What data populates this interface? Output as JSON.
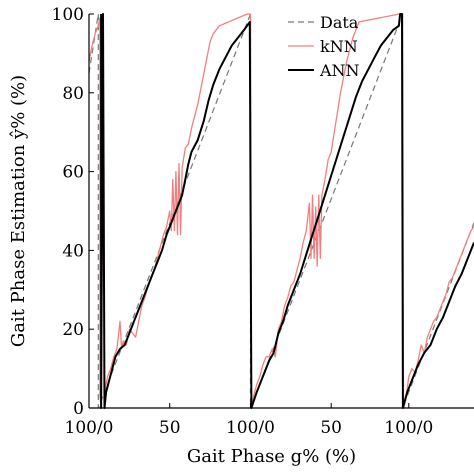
{
  "chart_data": {
    "type": "line",
    "xlabel": "Gait Phase g% (%)",
    "ylabel": "Gait Phase Estimation ŷ% (%)",
    "x_tick_labels": [
      "100/0",
      "50",
      "100/0",
      "50",
      "100/0"
    ],
    "y_tick_labels": [
      "0",
      "20",
      "40",
      "60",
      "80",
      "100"
    ],
    "ylim": [
      0,
      100
    ],
    "legend": {
      "position": "top-right"
    },
    "colors": {
      "Data": "#777777",
      "kNN": "#f08080",
      "ANN": "#000000"
    },
    "series": [
      {
        "name": "Data",
        "style": "dashed",
        "points": [
          [
            0,
            85
          ],
          [
            3,
            100
          ],
          [
            3,
            0
          ],
          [
            52,
            100
          ],
          [
            52,
            0
          ],
          [
            101,
            100
          ],
          [
            101,
            0
          ],
          [
            124,
            47
          ]
        ]
      },
      {
        "name": "kNN",
        "style": "solid",
        "points": [
          [
            0,
            88
          ],
          [
            1,
            92
          ],
          [
            2,
            95
          ],
          [
            3,
            97
          ],
          [
            3.5,
            99
          ],
          [
            3.5,
            3
          ],
          [
            4,
            0
          ],
          [
            4.5,
            100
          ],
          [
            5,
            4
          ],
          [
            6,
            8
          ],
          [
            7,
            10
          ],
          [
            8,
            13
          ],
          [
            9,
            15
          ],
          [
            10,
            22
          ],
          [
            10.5,
            15
          ],
          [
            11,
            17
          ],
          [
            12,
            16
          ],
          [
            13,
            20
          ],
          [
            14,
            19
          ],
          [
            15,
            18
          ],
          [
            16,
            22
          ],
          [
            17,
            26
          ],
          [
            18,
            28
          ],
          [
            19,
            31
          ],
          [
            20,
            33
          ],
          [
            21,
            35
          ],
          [
            22,
            38
          ],
          [
            23,
            41
          ],
          [
            24,
            44
          ],
          [
            25,
            46
          ],
          [
            26,
            50
          ],
          [
            26.5,
            45
          ],
          [
            27,
            58
          ],
          [
            27.5,
            45
          ],
          [
            28,
            60
          ],
          [
            28.5,
            44
          ],
          [
            29,
            62
          ],
          [
            29.5,
            44
          ],
          [
            30,
            61
          ],
          [
            31,
            66
          ],
          [
            32,
            67
          ],
          [
            33,
            71
          ],
          [
            34,
            74
          ],
          [
            35,
            77
          ],
          [
            36,
            81
          ],
          [
            37,
            85
          ],
          [
            38,
            89
          ],
          [
            39,
            93
          ],
          [
            40,
            95
          ],
          [
            41,
            96
          ],
          [
            42,
            97
          ],
          [
            51,
            100
          ],
          [
            52,
            100
          ],
          [
            52.3,
            0
          ],
          [
            53,
            3
          ],
          [
            54,
            6
          ],
          [
            55,
            8
          ],
          [
            56,
            11
          ],
          [
            57,
            13
          ],
          [
            58,
            13
          ],
          [
            59,
            15
          ],
          [
            60,
            13
          ],
          [
            61,
            20
          ],
          [
            62,
            22
          ],
          [
            63,
            26
          ],
          [
            64,
            28
          ],
          [
            65,
            31
          ],
          [
            66,
            32
          ],
          [
            67,
            35
          ],
          [
            68,
            38
          ],
          [
            69,
            42
          ],
          [
            70,
            45
          ],
          [
            71,
            52
          ],
          [
            71.5,
            38
          ],
          [
            72,
            54
          ],
          [
            72.5,
            38
          ],
          [
            73,
            51
          ],
          [
            73.5,
            36
          ],
          [
            74,
            54
          ],
          [
            74.5,
            38
          ],
          [
            75,
            54
          ],
          [
            76,
            58
          ],
          [
            77,
            63
          ],
          [
            78,
            65
          ],
          [
            79,
            70
          ],
          [
            80,
            75
          ],
          [
            81,
            80
          ],
          [
            82,
            84
          ],
          [
            83,
            88
          ],
          [
            84,
            91
          ],
          [
            85,
            94
          ],
          [
            86,
            96
          ],
          [
            87,
            98
          ],
          [
            100,
            100
          ],
          [
            101,
            100
          ],
          [
            101.3,
            0
          ],
          [
            102,
            2
          ],
          [
            103,
            8
          ],
          [
            104,
            10
          ],
          [
            105,
            9
          ],
          [
            106,
            12
          ],
          [
            107,
            16
          ],
          [
            108,
            14
          ],
          [
            109,
            18
          ],
          [
            110,
            20
          ],
          [
            111,
            22
          ],
          [
            112,
            23
          ],
          [
            113,
            25
          ],
          [
            114,
            27
          ],
          [
            115,
            29
          ],
          [
            116,
            32
          ],
          [
            117,
            33
          ],
          [
            118,
            35
          ],
          [
            119,
            37
          ],
          [
            120,
            39
          ],
          [
            121,
            41
          ],
          [
            122,
            43
          ],
          [
            123,
            45
          ],
          [
            124,
            46
          ]
        ]
      },
      {
        "name": "ANN",
        "style": "solid",
        "points": [
          [
            3.9,
            100
          ],
          [
            3.9,
            0
          ],
          [
            4.5,
            100
          ],
          [
            5,
            0
          ],
          [
            5.5,
            4
          ],
          [
            6.5,
            7
          ],
          [
            7.5,
            10
          ],
          [
            8.5,
            13
          ],
          [
            10,
            15
          ],
          [
            11.5,
            16
          ],
          [
            13,
            19
          ],
          [
            14.5,
            22
          ],
          [
            16,
            25
          ],
          [
            17.5,
            28
          ],
          [
            19,
            31
          ],
          [
            20.5,
            34
          ],
          [
            22,
            37
          ],
          [
            23.5,
            40
          ],
          [
            25,
            44
          ],
          [
            26.5,
            47
          ],
          [
            28,
            50
          ],
          [
            30,
            54
          ],
          [
            31,
            58
          ],
          [
            32,
            62
          ],
          [
            33,
            65
          ],
          [
            35,
            68
          ],
          [
            37,
            73
          ],
          [
            38.5,
            78
          ],
          [
            40,
            82
          ],
          [
            42,
            86
          ],
          [
            44,
            89
          ],
          [
            46,
            92
          ],
          [
            48,
            94
          ],
          [
            50,
            96
          ],
          [
            51.8,
            98
          ],
          [
            52.3,
            0
          ],
          [
            54,
            4
          ],
          [
            56,
            8
          ],
          [
            58,
            12
          ],
          [
            59.5,
            14
          ],
          [
            61,
            19
          ],
          [
            62.5,
            22
          ],
          [
            64,
            26
          ],
          [
            66,
            30
          ],
          [
            68,
            34
          ],
          [
            70,
            39
          ],
          [
            72,
            44
          ],
          [
            74,
            49
          ],
          [
            76,
            54
          ],
          [
            78,
            59
          ],
          [
            80,
            64
          ],
          [
            82,
            69
          ],
          [
            84,
            74
          ],
          [
            86,
            79
          ],
          [
            88,
            83
          ],
          [
            90,
            86
          ],
          [
            92,
            89
          ],
          [
            94,
            92
          ],
          [
            96,
            94
          ],
          [
            98,
            96
          ],
          [
            99.8,
            97
          ],
          [
            100.2,
            100
          ],
          [
            100.8,
            100
          ],
          [
            101.1,
            0
          ],
          [
            102.5,
            4
          ],
          [
            104,
            7
          ],
          [
            106,
            11
          ],
          [
            108,
            14
          ],
          [
            110,
            16
          ],
          [
            112,
            20
          ],
          [
            114,
            23
          ],
          [
            116,
            27
          ],
          [
            118,
            31
          ],
          [
            120,
            34
          ],
          [
            122,
            38
          ],
          [
            124,
            42
          ]
        ]
      }
    ]
  }
}
